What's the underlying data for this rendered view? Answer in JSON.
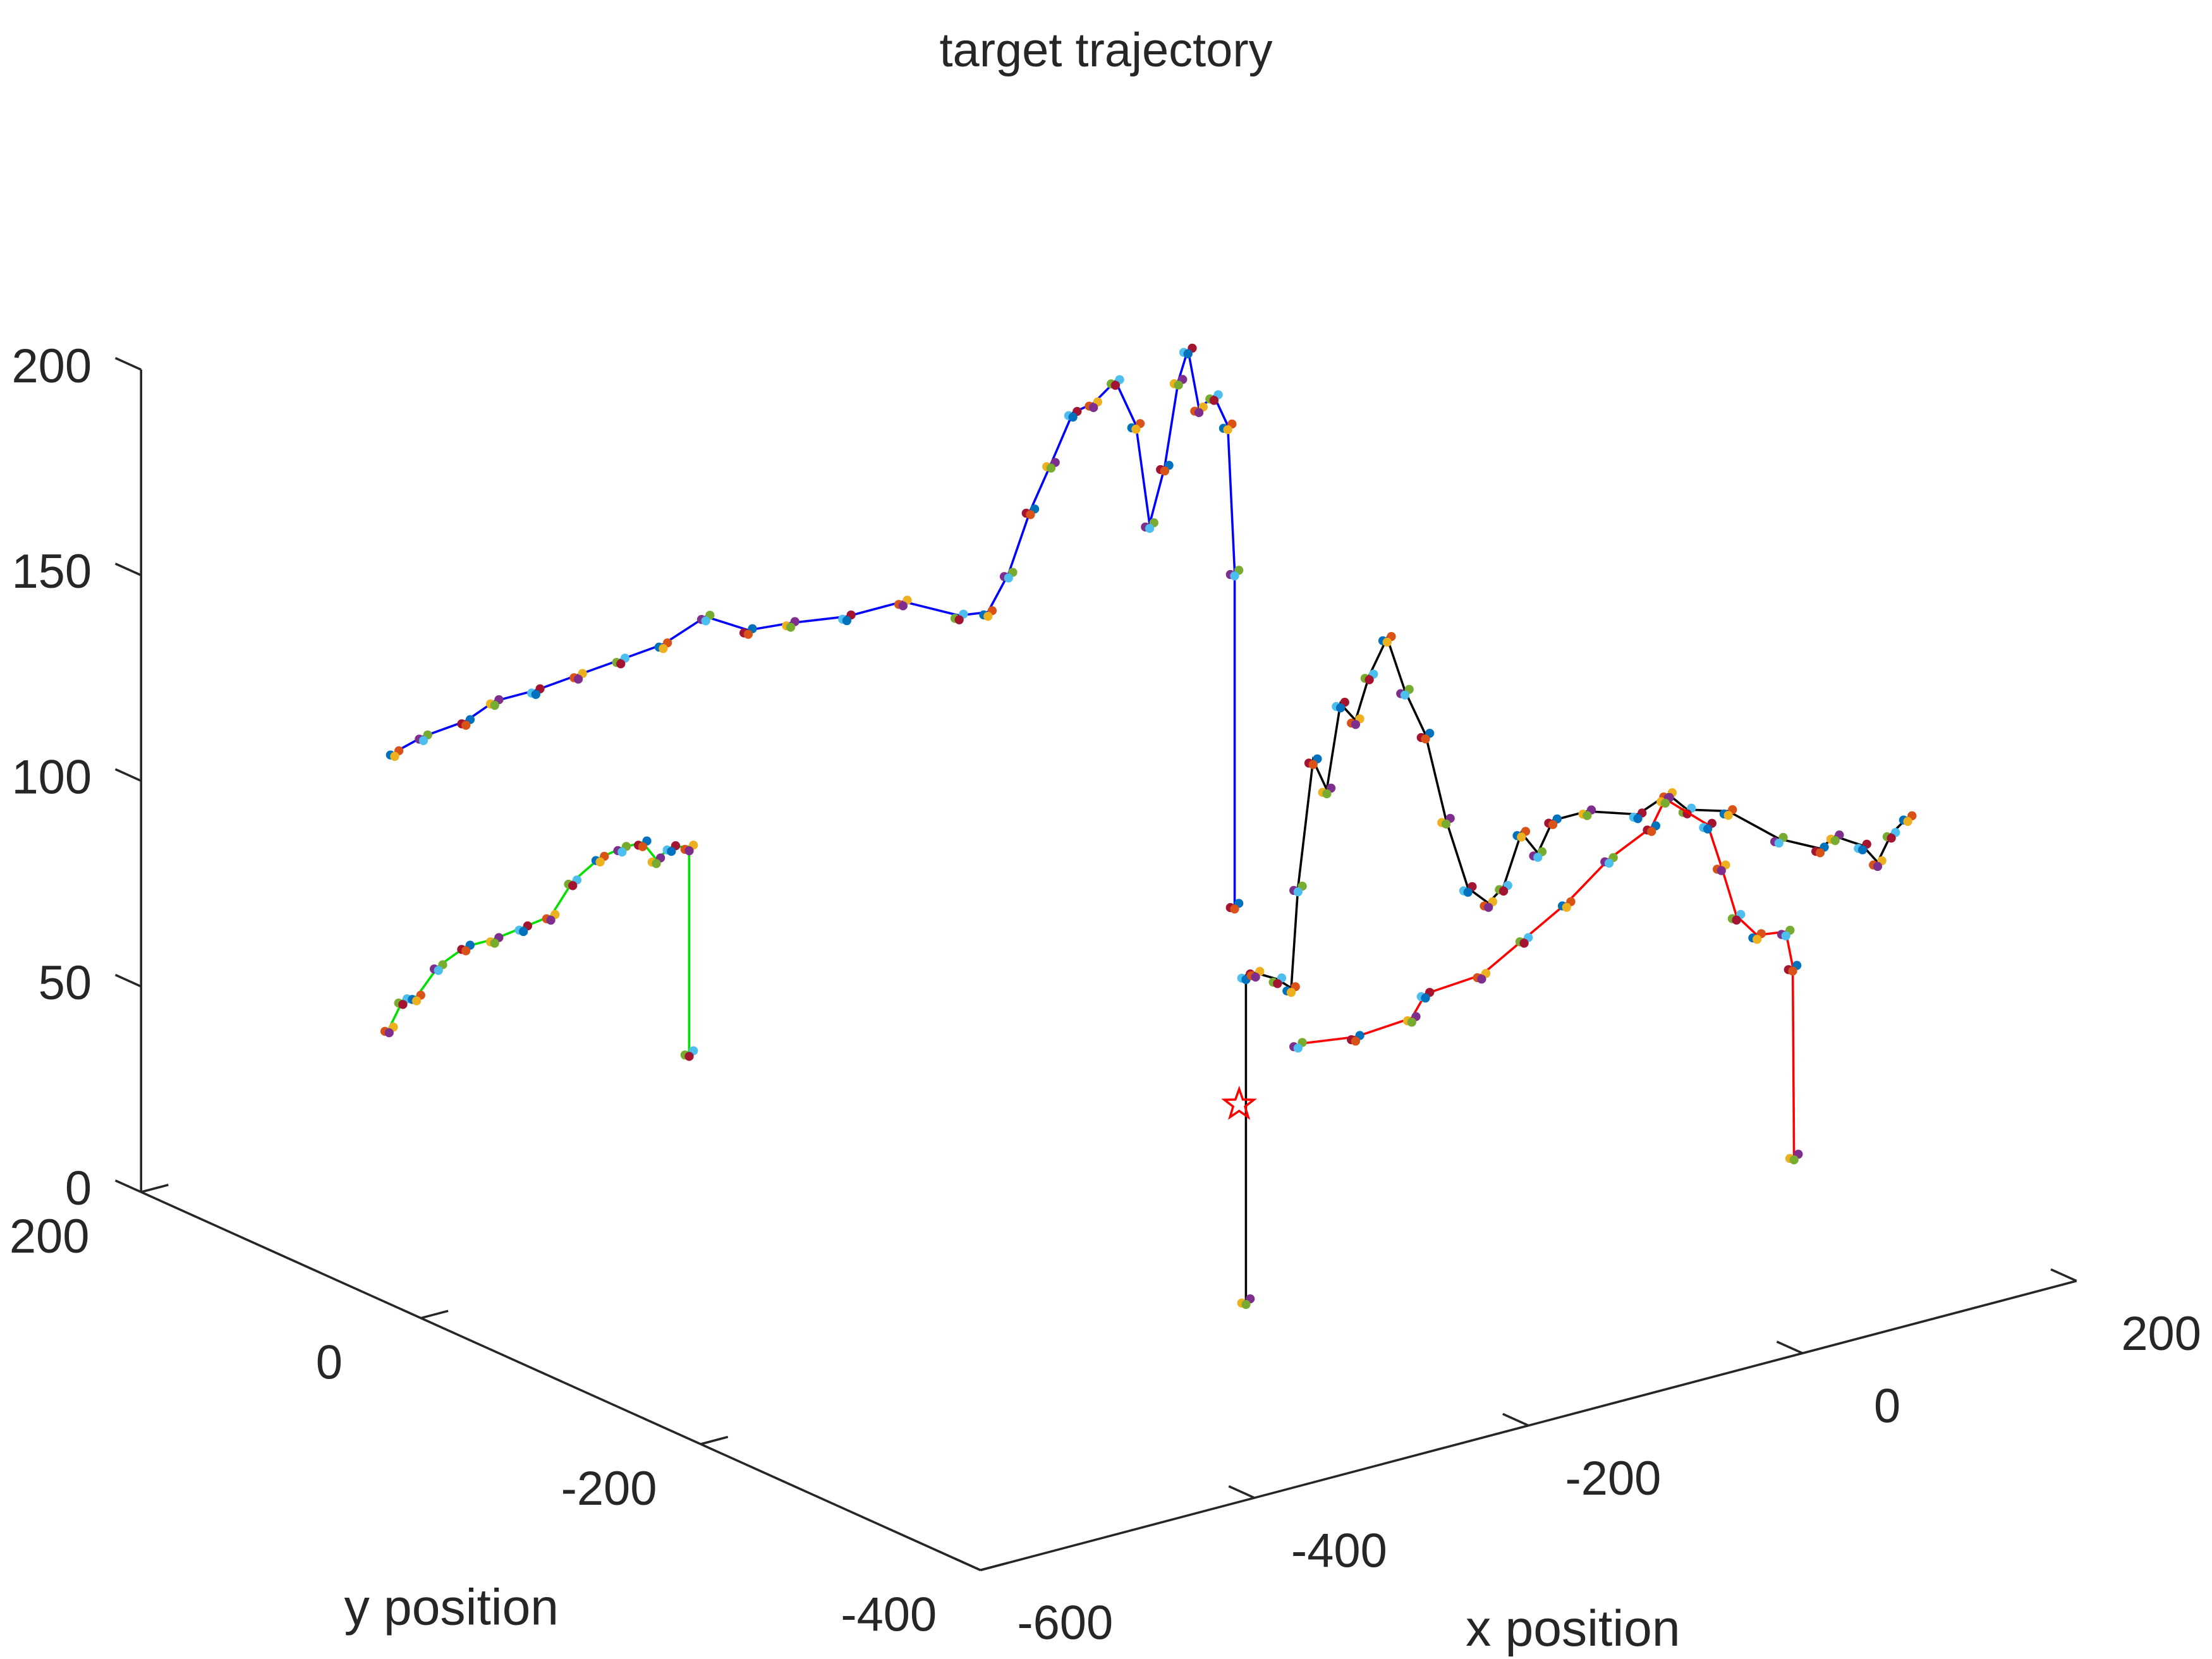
{
  "chart_data": {
    "type": "line3d",
    "title": "target trajectory",
    "xlabel": "x position",
    "ylabel": "y position",
    "xlim": [
      -600,
      200
    ],
    "ylim": [
      -400,
      200
    ],
    "zlim": [
      0,
      200
    ],
    "xticks": [
      -600,
      -400,
      -200,
      0,
      200
    ],
    "yticks": [
      -400,
      -200,
      0,
      200
    ],
    "zticks": [
      0,
      50,
      100,
      150,
      200
    ],
    "dot_colors": [
      "#0072BD",
      "#D95319",
      "#EDB120",
      "#7E2F8E",
      "#77AC30",
      "#4DBEEE",
      "#A2142F"
    ],
    "series": [
      {
        "color": "#0000ff",
        "x": [
          -517,
          -496,
          -465,
          -444,
          -414,
          -383,
          -352,
          -321,
          -290,
          -259,
          -228,
          -187,
          -146,
          -105,
          -84,
          -69,
          -53,
          -38,
          -22,
          -7,
          9,
          24,
          34,
          45,
          55,
          62,
          70,
          81,
          91,
          96,
          96
        ],
        "y": [
          100,
          100,
          100,
          100,
          100,
          100,
          100,
          100,
          100,
          100,
          100,
          100,
          100,
          100,
          100,
          100,
          100,
          100,
          100,
          100,
          100,
          100,
          100,
          100,
          100,
          100,
          100,
          100,
          100,
          100,
          100
        ],
        "z": [
          115,
          117,
          118,
          121,
          121,
          122,
          123,
          124,
          128,
          122,
          121,
          119,
          119,
          112,
          111,
          119,
          133,
          143,
          154,
          155,
          159,
          147,
          122,
          135,
          155,
          162,
          147,
          149,
          141,
          105,
          24
        ]
      },
      {
        "color": "#00e000",
        "x": [
          -470,
          -460,
          -450,
          -434,
          -414,
          -393,
          -372,
          -352,
          -336,
          -316,
          -300,
          -285,
          -275,
          -264,
          -251,
          -251
        ],
        "y": [
          150,
          150,
          150,
          150,
          150,
          150,
          150,
          150,
          150,
          150,
          150,
          150,
          150,
          150,
          150,
          150
        ],
        "z": [
          36,
          42,
          42,
          48,
          51,
          51,
          52,
          53,
          60,
          64,
          65,
          65,
          60,
          62,
          61,
          11
        ]
      },
      {
        "color": "#000000",
        "x": [
          -202,
          -202,
          -195,
          -179,
          -169,
          -164,
          -153,
          -143,
          -133,
          -122,
          -112,
          -99,
          -86,
          -71,
          -56,
          -40,
          -25,
          -14,
          -1,
          11,
          22,
          47,
          84,
          106,
          120,
          150,
          187,
          217,
          228,
          248,
          259,
          269,
          281
        ],
        "y": [
          -200,
          -200,
          -200,
          -200,
          -200,
          -200,
          -200,
          -200,
          -200,
          -200,
          -200,
          -200,
          -200,
          -200,
          -200,
          -200,
          -200,
          -200,
          -200,
          -200,
          -200,
          -200,
          -200,
          -200,
          -200,
          -200,
          -200,
          -200,
          -200,
          -200,
          -200,
          -200,
          -200
        ],
        "z": [
          0,
          79,
          79,
          76,
          73,
          97,
          127,
          119,
          139,
          134,
          144,
          152,
          138,
          126,
          104,
          86,
          81,
          84,
          96,
          90,
          97,
          97,
          93,
          96,
          91,
          88,
          78,
          73,
          75,
          71,
          66,
          72,
          75
        ]
      },
      {
        "color": "#ff0000",
        "x": [
          -164,
          -122,
          -81,
          -71,
          -30,
          1,
          32,
          63,
          94,
          104,
          135,
          145,
          156,
          171,
          192,
          197,
          198
        ],
        "y": [
          -200,
          -200,
          -200,
          -200,
          -200,
          -200,
          -200,
          -200,
          -200,
          -200,
          -200,
          -200,
          -200,
          -200,
          -200,
          -200,
          -200
        ],
        "z": [
          59,
          57,
          58,
          63,
          64,
          70,
          76,
          84,
          89,
          95,
          86,
          75,
          62,
          56,
          55,
          46,
          0
        ]
      },
      {
        "color": "#ff0000",
        "marker": "star",
        "x": [
          -207
        ],
        "y": [
          -200
        ],
        "z": [
          48
        ]
      }
    ]
  }
}
